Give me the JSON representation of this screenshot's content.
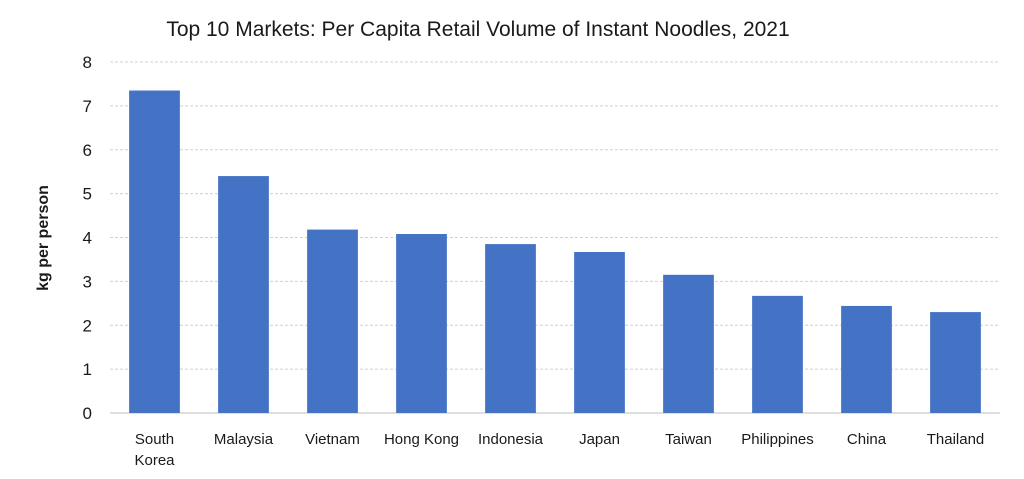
{
  "chart_data": {
    "type": "bar",
    "title": "Top 10 Markets: Per Capita Retail Volume of Instant Noodles, 2021",
    "xlabel": "",
    "ylabel": "kg per person",
    "categories": [
      "South Korea",
      "Malaysia",
      "Vietnam",
      "Hong Kong",
      "Indonesia",
      "Japan",
      "Taiwan",
      "Philippines",
      "China",
      "Thailand"
    ],
    "category_lines": [
      [
        "South",
        "Korea"
      ],
      [
        "Malaysia"
      ],
      [
        "Vietnam"
      ],
      [
        "Hong Kong"
      ],
      [
        "Indonesia"
      ],
      [
        "Japan"
      ],
      [
        "Taiwan"
      ],
      [
        "Philippines"
      ],
      [
        "China"
      ],
      [
        "Thailand"
      ]
    ],
    "values": [
      7.35,
      5.4,
      4.18,
      4.08,
      3.85,
      3.67,
      3.15,
      2.67,
      2.44,
      2.3
    ],
    "ylim": [
      0,
      8
    ],
    "yticks": [
      0,
      1,
      2,
      3,
      4,
      5,
      6,
      7,
      8
    ],
    "grid": true,
    "legend": "none",
    "bar_color": "#4472C4"
  }
}
